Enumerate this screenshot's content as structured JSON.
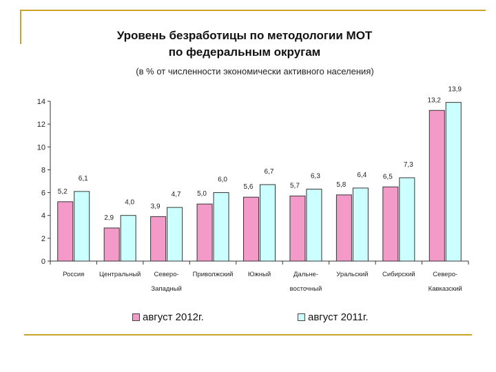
{
  "chart_data": {
    "type": "bar",
    "title": "Уровень безработицы по методологии МОТ",
    "title_line2": "по федеральным округам",
    "subtitle": "(в % от численности экономически активного населения)",
    "categories": [
      [
        "Россия"
      ],
      [
        "Центральный"
      ],
      [
        "Северо-",
        "Западный"
      ],
      [
        "Приволжский"
      ],
      [
        "Южный"
      ],
      [
        "Дальне-",
        "восточный"
      ],
      [
        "Уральский"
      ],
      [
        "Сибирский"
      ],
      [
        "Северо-",
        "Кавказский"
      ]
    ],
    "series": [
      {
        "name": "август 2012г.",
        "color": "#f49ac9",
        "values": [
          5.2,
          2.9,
          3.9,
          5.0,
          5.6,
          5.7,
          5.8,
          6.5,
          13.2
        ],
        "labels": [
          "5,2",
          "2,9",
          "3,9",
          "5,0",
          "5,6",
          "5,7",
          "5,8",
          "6,5",
          "13,2"
        ]
      },
      {
        "name": "август 2011г.",
        "color": "#ccffff",
        "values": [
          6.1,
          4.0,
          4.7,
          6.0,
          6.7,
          6.3,
          6.4,
          7.3,
          13.9
        ],
        "labels": [
          "6,1",
          "4,0",
          "4,7",
          "6,0",
          "6,7",
          "6,3",
          "6,4",
          "7,3",
          "13,9"
        ]
      }
    ],
    "ylim": [
      0,
      14
    ],
    "yticks": [
      "0",
      "2",
      "4",
      "6",
      "8",
      "10",
      "12",
      "14"
    ],
    "xlabel": "",
    "ylabel": "",
    "grid": false,
    "legend_position": "bottom"
  }
}
